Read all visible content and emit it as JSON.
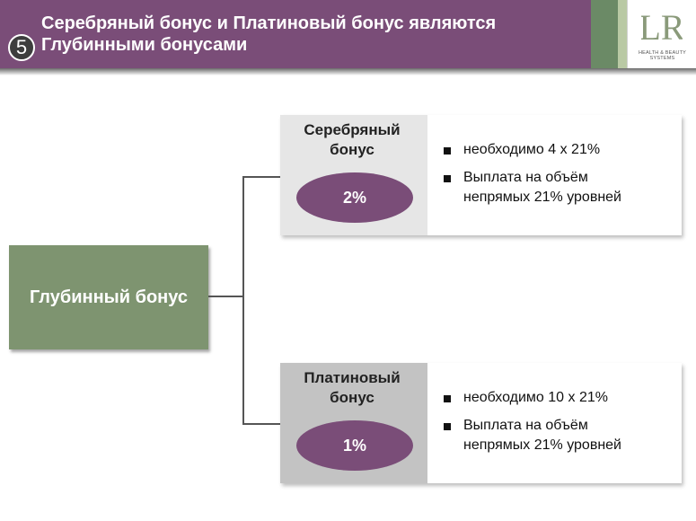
{
  "header": {
    "step_number": "5",
    "title_line1": "Серебряный бонус и Платиновый бонус являются",
    "title_line2": "Глубинными бонусами",
    "logo_text": "LR",
    "logo_tagline_line1": "HEALTH & BEAUTY",
    "logo_tagline_line2": "SYSTEMS"
  },
  "colors": {
    "purple": "#7a4d78",
    "green": "#7e9470",
    "silver": "#e6e6e6",
    "platinum": "#c3c3c3"
  },
  "root": {
    "label": "Глубинный бонус"
  },
  "bonuses": [
    {
      "title_line1": "Серебряный",
      "title_line2": "бонус",
      "percent": "2%",
      "bullets": [
        {
          "line1": "необходимо 4 х 21%",
          "line2": ""
        },
        {
          "line1": "Выплата на объём",
          "line2": "непрямых 21% уровней"
        }
      ]
    },
    {
      "title_line1": "Платиновый",
      "title_line2": "бонус",
      "percent": "1%",
      "bullets": [
        {
          "line1": "необходимо 10 х 21%",
          "line2": ""
        },
        {
          "line1": "Выплата на объём",
          "line2": "непрямых 21% уровней"
        }
      ]
    }
  ]
}
